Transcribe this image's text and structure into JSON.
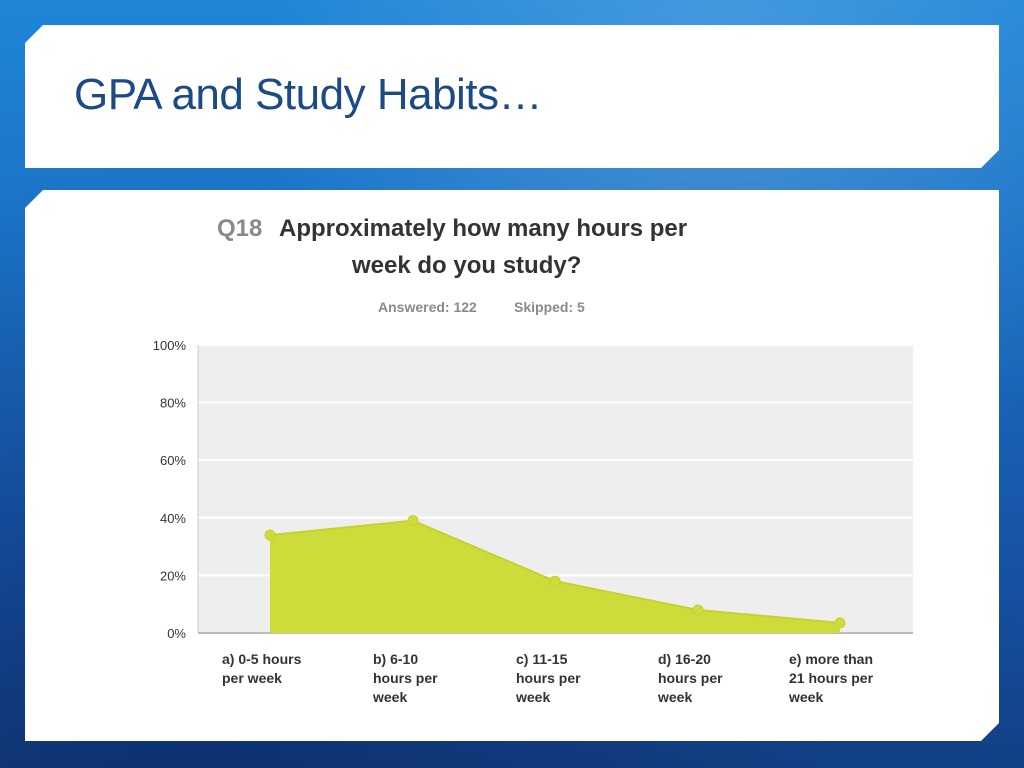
{
  "slide": {
    "title": "GPA and Study Habits…"
  },
  "survey": {
    "question_number": "Q18",
    "question_line1": "Approximately how many hours per",
    "question_line2": "week do you study?",
    "answered": "Answered: 122",
    "skipped": "Skipped: 5"
  },
  "colors": {
    "area_fill": "#cddc3a",
    "area_stroke": "#c3d32c",
    "plot_bg": "#eeeeee",
    "gridline": "#ffffff"
  },
  "chart_data": {
    "type": "area",
    "categories": [
      [
        "a) 0-5 hours",
        "per week"
      ],
      [
        "b) 6-10",
        "hours per",
        "week"
      ],
      [
        "c) 11-15",
        "hours per",
        "week"
      ],
      [
        "d) 16-20",
        "hours per",
        "week"
      ],
      [
        "e) more than",
        "21 hours per",
        "week"
      ]
    ],
    "values": [
      34,
      39,
      18,
      8,
      3.5
    ],
    "ylim": [
      0,
      100
    ],
    "yticks": [
      "0%",
      "20%",
      "40%",
      "60%",
      "80%",
      "100%"
    ],
    "ytick_values": [
      0,
      20,
      40,
      60,
      80,
      100
    ],
    "grid": true,
    "legend": "none"
  }
}
